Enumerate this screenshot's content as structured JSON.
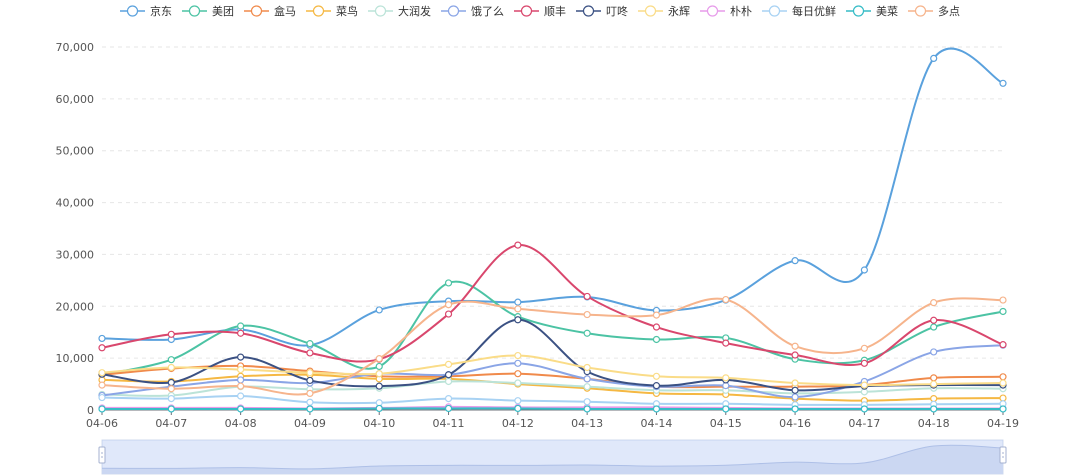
{
  "chart_data": {
    "type": "line",
    "categories": [
      "04-06",
      "04-07",
      "04-08",
      "04-09",
      "04-10",
      "04-11",
      "04-12",
      "04-13",
      "04-14",
      "04-15",
      "04-16",
      "04-17",
      "04-18",
      "04-19"
    ],
    "ylim": [
      0,
      70000
    ],
    "yticks": [
      0,
      10000,
      20000,
      30000,
      40000,
      50000,
      60000,
      70000
    ],
    "ytick_labels": [
      "0",
      "10,000",
      "20,000",
      "30,000",
      "40,000",
      "50,000",
      "60,000",
      "70,000"
    ],
    "grid": true,
    "smooth": true,
    "legend_position": "top-center",
    "datazoom_slider": true,
    "series": [
      {
        "name": "京东",
        "color": "#5aa1dd",
        "values": [
          13800,
          13600,
          15500,
          12500,
          19300,
          21000,
          20800,
          21800,
          19200,
          21200,
          28800,
          27000,
          67800,
          63000
        ]
      },
      {
        "name": "美团",
        "color": "#4cc3a4",
        "values": [
          6800,
          9700,
          16200,
          12800,
          8400,
          24500,
          18000,
          14800,
          13600,
          13900,
          9800,
          9600,
          16000,
          19000
        ]
      },
      {
        "name": "盒马",
        "color": "#f08a4b",
        "values": [
          6800,
          8000,
          8500,
          7500,
          6500,
          6500,
          7000,
          6000,
          4500,
          4500,
          4500,
          4800,
          6200,
          6400
        ]
      },
      {
        "name": "菜鸟",
        "color": "#f5b843",
        "values": [
          5800,
          5500,
          6500,
          6800,
          6000,
          6000,
          5000,
          4200,
          3200,
          3000,
          2200,
          1800,
          2200,
          2300
        ]
      },
      {
        "name": "大润发",
        "color": "#bbe3d8",
        "values": [
          3000,
          2800,
          4500,
          4000,
          4200,
          5500,
          5200,
          4500,
          3800,
          3800,
          3200,
          3500,
          4200,
          4100
        ]
      },
      {
        "name": "饿了么",
        "color": "#8aa5e6",
        "values": [
          2800,
          4500,
          5800,
          5200,
          7000,
          6800,
          9000,
          6000,
          4500,
          4700,
          2500,
          5500,
          11200,
          12500
        ]
      },
      {
        "name": "顺丰",
        "color": "#d9476d",
        "values": [
          12000,
          14600,
          14800,
          11000,
          9800,
          18500,
          31800,
          21900,
          16000,
          12900,
          10600,
          9000,
          17300,
          12600
        ]
      },
      {
        "name": "叮咚",
        "color": "#3b5183",
        "values": [
          6900,
          5300,
          10200,
          5700,
          4600,
          6800,
          17400,
          7400,
          4700,
          5800,
          3800,
          4600,
          4800,
          4800
        ]
      },
      {
        "name": "永辉",
        "color": "#fadc88",
        "values": [
          7200,
          8200,
          7800,
          7200,
          7000,
          8800,
          10500,
          8200,
          6500,
          6200,
          5200,
          4800,
          5000,
          5200
        ]
      },
      {
        "name": "朴朴",
        "color": "#e79bea",
        "values": [
          400,
          400,
          400,
          300,
          400,
          600,
          500,
          500,
          500,
          400,
          300,
          300,
          300,
          300
        ]
      },
      {
        "name": "每日优鲜",
        "color": "#a8d2f3",
        "values": [
          2400,
          2200,
          2700,
          1500,
          1400,
          2200,
          1800,
          1600,
          1200,
          1200,
          1000,
          1000,
          1100,
          1200
        ]
      },
      {
        "name": "美菜",
        "color": "#35bcc6",
        "values": [
          200,
          200,
          200,
          200,
          300,
          300,
          300,
          200,
          200,
          200,
          200,
          200,
          200,
          200
        ]
      },
      {
        "name": "多点",
        "color": "#f6b48c",
        "values": [
          4800,
          4100,
          4600,
          3200,
          9900,
          20300,
          19500,
          18400,
          18300,
          21300,
          12300,
          11900,
          20700,
          21200
        ]
      }
    ]
  }
}
